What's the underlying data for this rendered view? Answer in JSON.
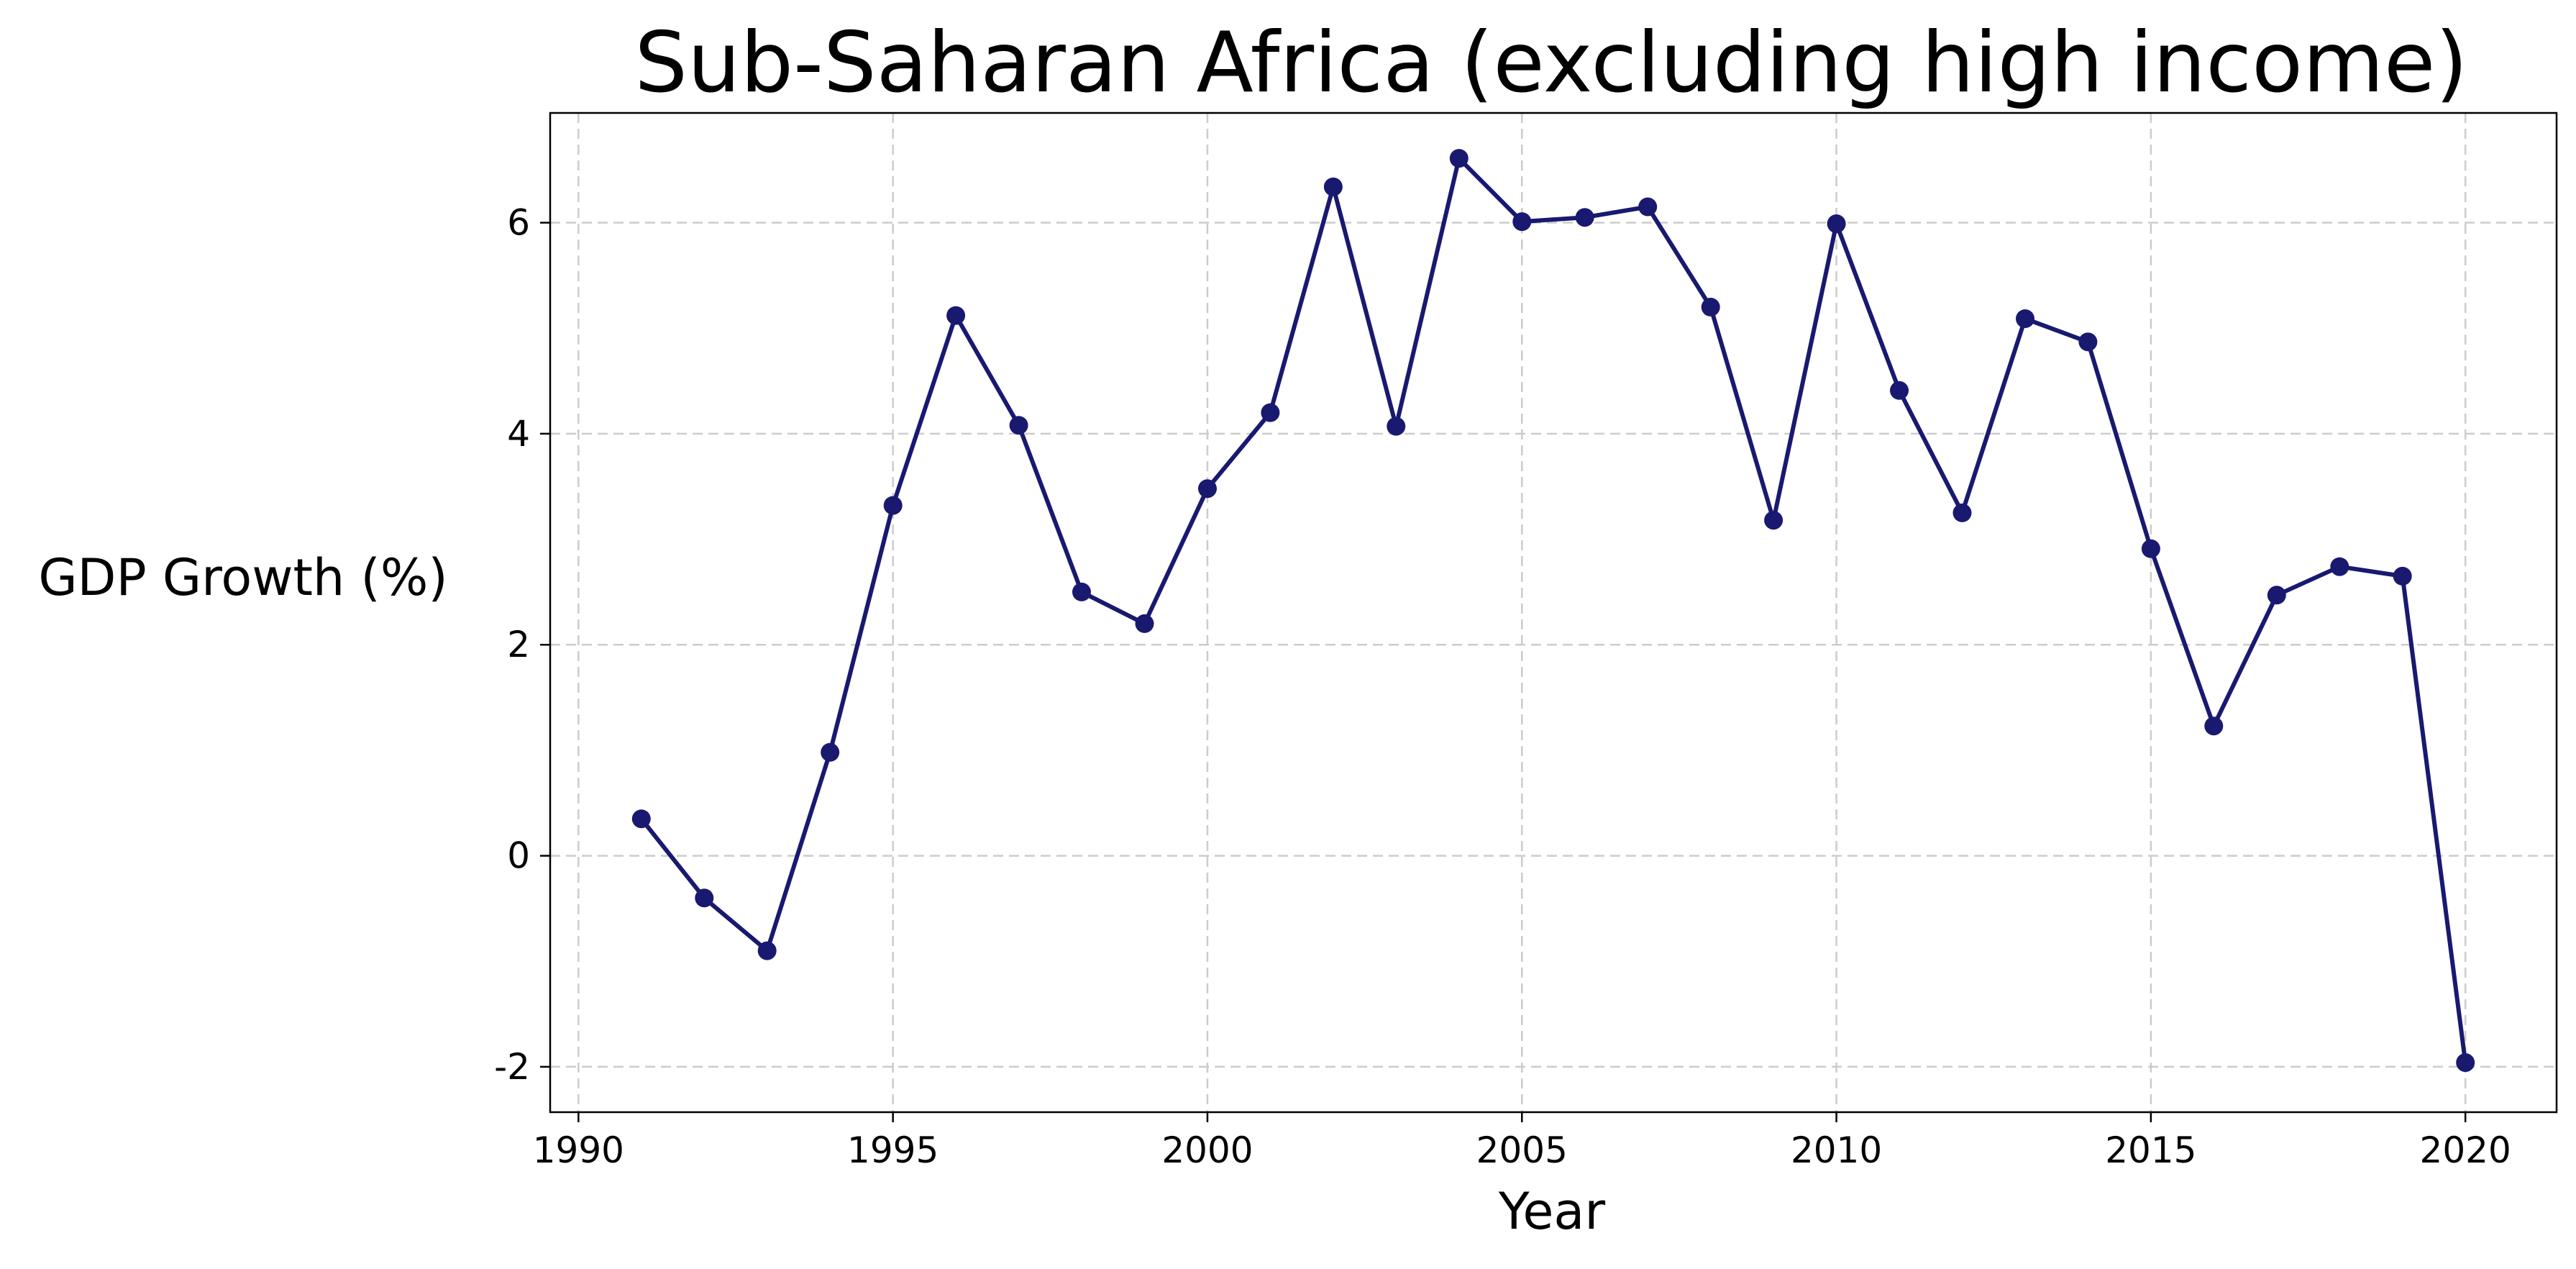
{
  "chart_data": {
    "type": "line",
    "title": "Sub-Saharan Africa (excluding high income)",
    "xlabel": "Year",
    "ylabel": "GDP Growth (%)",
    "xlim": [
      1989.55,
      2021.45
    ],
    "ylim": [
      -2.43,
      7.04
    ],
    "xticks": [
      1990,
      1995,
      2000,
      2005,
      2010,
      2015,
      2020
    ],
    "yticks": [
      -2,
      0,
      2,
      4,
      6
    ],
    "grid": true,
    "line_color": "#191970",
    "series": [
      {
        "x": [
          1991,
          1992,
          1993,
          1994,
          1995,
          1996,
          1997,
          1998,
          1999,
          2000,
          2001,
          2002,
          2003,
          2004,
          2005,
          2006,
          2007,
          2008,
          2009,
          2010,
          2011,
          2012,
          2013,
          2014,
          2015,
          2016,
          2017,
          2018,
          2019,
          2020
        ],
        "values": [
          0.35,
          -0.4,
          -0.9,
          0.98,
          3.32,
          5.12,
          4.08,
          2.5,
          2.2,
          3.48,
          4.2,
          6.34,
          4.07,
          6.61,
          6.01,
          6.05,
          6.15,
          5.2,
          3.18,
          5.99,
          4.41,
          3.25,
          5.09,
          4.87,
          2.91,
          1.23,
          2.47,
          2.74,
          2.65,
          -1.96
        ]
      }
    ]
  }
}
